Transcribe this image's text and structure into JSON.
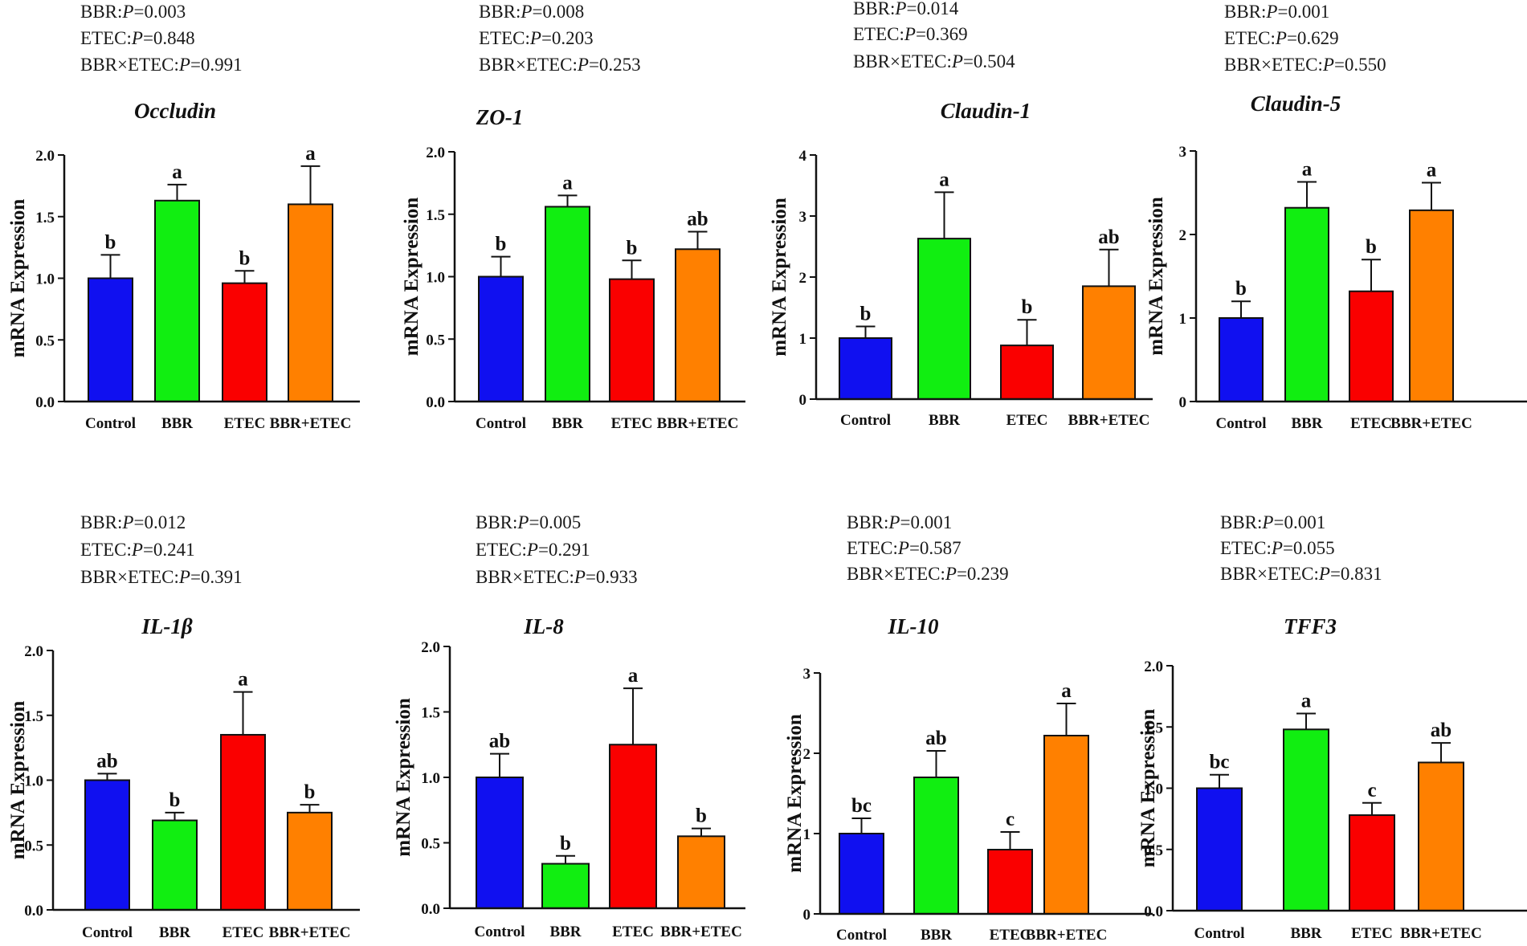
{
  "colors": {
    "Control": "#1010f0",
    "BBR": "#11ee11",
    "ETEC": "#fa0000",
    "BBR+ETEC": "#ff8000"
  },
  "chart_data": [
    {
      "type": "bar",
      "title": "Occludin",
      "ylabel": "mRNA Expression",
      "categories": [
        "Control",
        "BBR",
        "ETEC",
        "BBR+ETEC"
      ],
      "values": [
        1.0,
        1.63,
        0.96,
        1.6
      ],
      "errors": [
        0.19,
        0.13,
        0.1,
        0.31
      ],
      "significance": [
        "b",
        "a",
        "b",
        "a"
      ],
      "ylim": [
        0,
        2.0
      ],
      "yticks": [
        0.0,
        0.5,
        1.0,
        1.5,
        2.0
      ],
      "ytick_labels": [
        "0.0",
        "0.5",
        "1.0",
        "1.5",
        "2.0"
      ],
      "stats": [
        {
          "label": "BBR:",
          "p": "P",
          "value": "=0.003"
        },
        {
          "label": "ETEC:",
          "p": "P",
          "value": "=0.848"
        },
        {
          "label": "BBR×ETEC:",
          "p": "P",
          "value": "=0.991"
        }
      ]
    },
    {
      "type": "bar",
      "title": "ZO-1",
      "ylabel": "mRNA Expression",
      "categories": [
        "Control",
        "BBR",
        "ETEC",
        "BBR+ETEC"
      ],
      "values": [
        1.0,
        1.56,
        0.98,
        1.22
      ],
      "errors": [
        0.16,
        0.09,
        0.15,
        0.14
      ],
      "significance": [
        "b",
        "a",
        "b",
        "ab"
      ],
      "ylim": [
        0,
        2.0
      ],
      "yticks": [
        0.0,
        0.5,
        1.0,
        1.5,
        2.0
      ],
      "ytick_labels": [
        "0.0",
        "0.5",
        "1.0",
        "1.5",
        "2.0"
      ],
      "stats": [
        {
          "label": "BBR:",
          "p": "P",
          "value": "=0.008"
        },
        {
          "label": "ETEC:",
          "p": "P",
          "value": "=0.203"
        },
        {
          "label": "BBR×ETEC:",
          "p": "P",
          "value": "=0.253"
        }
      ]
    },
    {
      "type": "bar",
      "title": "Claudin-1",
      "ylabel": "mRNA Expression",
      "categories": [
        "Control",
        "BBR",
        "ETEC",
        "BBR+ETEC"
      ],
      "values": [
        1.0,
        2.63,
        0.88,
        1.85
      ],
      "errors": [
        0.19,
        0.76,
        0.42,
        0.6
      ],
      "significance": [
        "b",
        "a",
        "b",
        "ab"
      ],
      "ylim": [
        0,
        4
      ],
      "yticks": [
        0,
        1,
        2,
        3,
        4
      ],
      "ytick_labels": [
        "0",
        "1",
        "2",
        "3",
        "4"
      ],
      "stats": [
        {
          "label": "BBR:",
          "p": "P",
          "value": "=0.014"
        },
        {
          "label": "ETEC:",
          "p": "P",
          "value": "=0.369"
        },
        {
          "label": "BBR×ETEC:",
          "p": "P",
          "value": "=0.504"
        }
      ]
    },
    {
      "type": "bar",
      "title": "Claudin-5",
      "ylabel": "mRNA Expression",
      "categories": [
        "Control",
        "BBR",
        "ETEC",
        "BBR+ETEC"
      ],
      "values": [
        1.0,
        2.32,
        1.32,
        2.29
      ],
      "errors": [
        0.2,
        0.31,
        0.38,
        0.33
      ],
      "significance": [
        "b",
        "a",
        "b",
        "a"
      ],
      "ylim": [
        0,
        3
      ],
      "yticks": [
        0,
        1,
        2,
        3
      ],
      "ytick_labels": [
        "0",
        "1",
        "2",
        "3"
      ],
      "stats": [
        {
          "label": "BBR:",
          "p": "P",
          "value": "=0.001"
        },
        {
          "label": "ETEC:",
          "p": "P",
          "value": "=0.629"
        },
        {
          "label": "BBR×ETEC:",
          "p": "P",
          "value": "=0.550"
        }
      ]
    },
    {
      "type": "bar",
      "title": "IL-1β",
      "ylabel": "mRNA Expression",
      "categories": [
        "Control",
        "BBR",
        "ETEC",
        "BBR+ETEC"
      ],
      "values": [
        1.0,
        0.69,
        1.35,
        0.75
      ],
      "errors": [
        0.05,
        0.06,
        0.33,
        0.06
      ],
      "significance": [
        "ab",
        "b",
        "a",
        "b"
      ],
      "ylim": [
        0,
        2.0
      ],
      "yticks": [
        0.0,
        0.5,
        1.0,
        1.5,
        2.0
      ],
      "ytick_labels": [
        "0.0",
        "0.5",
        "1.0",
        "1.5",
        "2.0"
      ],
      "stats": [
        {
          "label": "BBR:",
          "p": "P",
          "value": "=0.012"
        },
        {
          "label": "ETEC:",
          "p": "P",
          "value": "=0.241"
        },
        {
          "label": "BBR×ETEC:",
          "p": "P",
          "value": "=0.391"
        }
      ]
    },
    {
      "type": "bar",
      "title": "IL-8",
      "ylabel": "mRNA Expression",
      "categories": [
        "Control",
        "BBR",
        "ETEC",
        "BBR+ETEC"
      ],
      "values": [
        1.0,
        0.34,
        1.25,
        0.55
      ],
      "errors": [
        0.18,
        0.06,
        0.43,
        0.06
      ],
      "significance": [
        "ab",
        "b",
        "a",
        "b"
      ],
      "ylim": [
        0,
        2.0
      ],
      "yticks": [
        0.0,
        0.5,
        1.0,
        1.5,
        2.0
      ],
      "ytick_labels": [
        "0.0",
        "0.5",
        "1.0",
        "1.5",
        "2.0"
      ],
      "stats": [
        {
          "label": "BBR:",
          "p": "P",
          "value": "=0.005"
        },
        {
          "label": "ETEC:",
          "p": "P",
          "value": "=0.291"
        },
        {
          "label": "BBR×ETEC:",
          "p": "P",
          "value": "=0.933"
        }
      ]
    },
    {
      "type": "bar",
      "title": "IL-10",
      "ylabel": "mRNA Expression",
      "categories": [
        "Control",
        "BBR",
        "ETEC",
        "BBR+ETEC"
      ],
      "values": [
        1.0,
        1.7,
        0.8,
        2.22
      ],
      "errors": [
        0.19,
        0.33,
        0.22,
        0.4
      ],
      "significance": [
        "bc",
        "ab",
        "c",
        "a"
      ],
      "ylim": [
        0,
        3
      ],
      "yticks": [
        0,
        1,
        2,
        3
      ],
      "ytick_labels": [
        "0",
        "1",
        "2",
        "3"
      ],
      "stats": [
        {
          "label": "BBR:",
          "p": "P",
          "value": "=0.001"
        },
        {
          "label": "ETEC:",
          "p": "P",
          "value": "=0.587"
        },
        {
          "label": "BBR×ETEC:",
          "p": "P",
          "value": "=0.239"
        }
      ]
    },
    {
      "type": "bar",
      "title": "TFF3",
      "ylabel": "mRNA Expression",
      "categories": [
        "Control",
        "BBR",
        "ETEC",
        "BBR+ETEC"
      ],
      "values": [
        1.0,
        1.48,
        0.78,
        1.21
      ],
      "errors": [
        0.11,
        0.13,
        0.1,
        0.16
      ],
      "significance": [
        "bc",
        "a",
        "c",
        "ab"
      ],
      "ylim": [
        0,
        2.0
      ],
      "yticks": [
        0.0,
        0.5,
        1.0,
        1.5,
        2.0
      ],
      "ytick_labels": [
        "0.0",
        "0.5",
        "1.0",
        "1.5",
        "2.0"
      ],
      "stats": [
        {
          "label": "BBR:",
          "p": "P",
          "value": "=0.001"
        },
        {
          "label": "ETEC:",
          "p": "P",
          "value": "=0.055"
        },
        {
          "label": "BBR×ETEC:",
          "p": "P",
          "value": "=0.831"
        }
      ]
    }
  ]
}
